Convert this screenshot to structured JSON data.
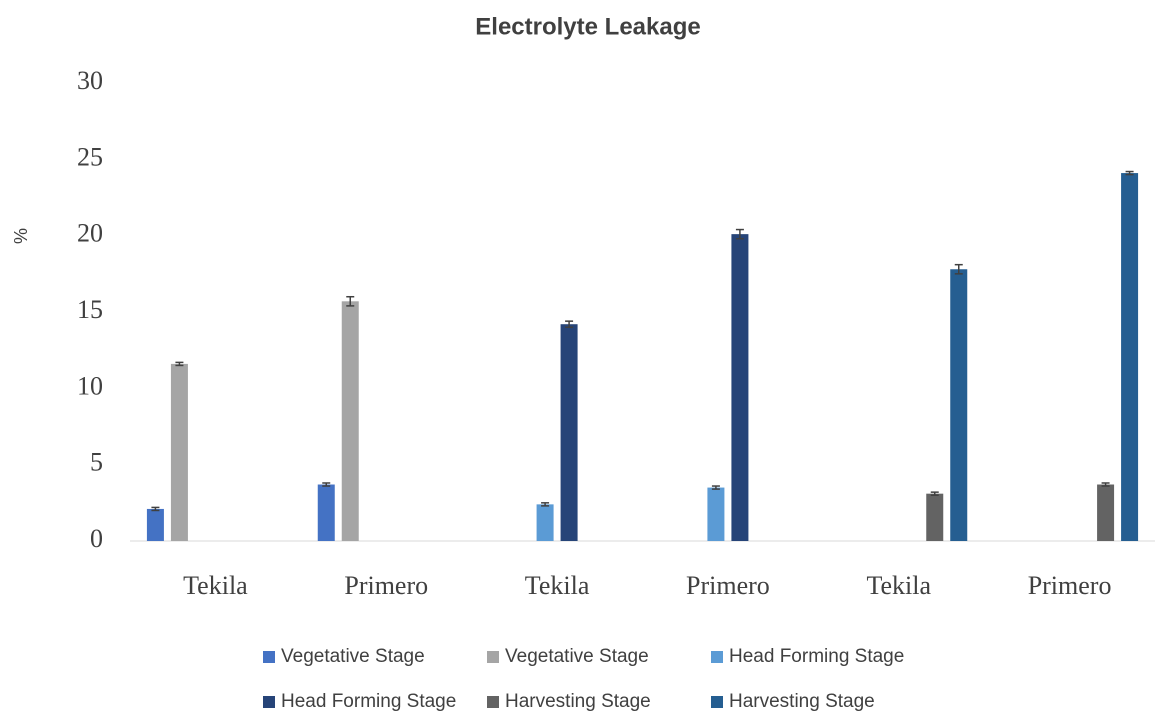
{
  "chart_data": {
    "type": "bar",
    "title": "Electrolyte Leakage",
    "y_label": "%",
    "categories": [
      "Tekila",
      "Primero",
      "Tekila",
      "Primero",
      "Tekila",
      "Primero"
    ],
    "series": [
      {
        "name": "Vegetative Stage",
        "color": "#4472c4",
        "values": [
          2.1,
          3.7,
          null,
          null,
          null,
          null
        ],
        "errors": [
          0.1,
          0.1,
          null,
          null,
          null,
          null
        ]
      },
      {
        "name": "Vegetative Stage",
        "color": "#a5a5a5",
        "values": [
          11.6,
          15.7,
          null,
          null,
          null,
          null
        ],
        "errors": [
          0.1,
          0.3,
          null,
          null,
          null,
          null
        ]
      },
      {
        "name": "Head Forming Stage",
        "color": "#5b9bd5",
        "values": [
          null,
          null,
          2.4,
          3.5,
          null,
          null
        ],
        "errors": [
          null,
          null,
          0.1,
          0.1,
          null,
          null
        ]
      },
      {
        "name": "Head Forming Stage",
        "color": "#264478",
        "values": [
          null,
          null,
          14.2,
          20.1,
          null,
          null
        ],
        "errors": [
          null,
          null,
          0.2,
          0.3,
          null,
          null
        ]
      },
      {
        "name": "Harvesting Stage",
        "color": "#636363",
        "values": [
          null,
          null,
          null,
          null,
          3.1,
          3.7
        ],
        "errors": [
          null,
          null,
          null,
          null,
          0.1,
          0.1
        ]
      },
      {
        "name": "Harvesting Stage",
        "color": "#255e91",
        "values": [
          null,
          null,
          null,
          null,
          17.8,
          24.1
        ],
        "errors": [
          null,
          null,
          null,
          null,
          0.3,
          0.1
        ]
      }
    ],
    "ylim": [
      0,
      30
    ],
    "yticks": [
      0,
      5,
      10,
      15,
      20,
      25,
      30
    ],
    "grid": false,
    "legend": "bottom"
  }
}
